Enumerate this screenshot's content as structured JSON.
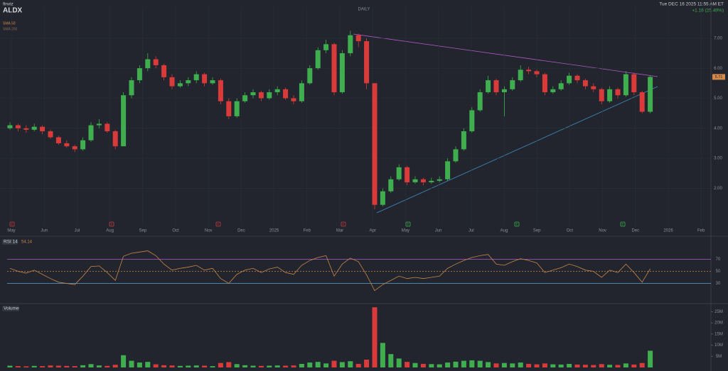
{
  "header": {
    "brand": "finviz",
    "ticker": "ALDX",
    "timeframe": "DAILY",
    "datetime": "Tue DEC 16 2025 11:55 AM ET",
    "change": "+1.16 (25.49%)",
    "sma50": "SMA 50",
    "sma200": "SMA 200"
  },
  "chart_data": {
    "type": "candlestick",
    "up_color": "#3fae4f",
    "down_color": "#d93b3b",
    "xaxis_labels": [
      "May",
      "Jun",
      "Jul",
      "Aug",
      "Sep",
      "Oct",
      "Nov",
      "Dec",
      "2025",
      "Feb",
      "Mar",
      "Apr",
      "May",
      "Jun",
      "Jul",
      "Aug",
      "Sep",
      "Oct",
      "Nov",
      "Dec",
      "2026",
      "Feb"
    ],
    "earnings": [
      "E",
      "E",
      "E",
      "E",
      "E",
      "E",
      "E"
    ],
    "ylim": [
      0.9,
      7.8
    ],
    "yticks": [
      {
        "value": 2,
        "label": "2.00"
      },
      {
        "value": 3,
        "label": "3.00"
      },
      {
        "value": 4,
        "label": "4.00"
      },
      {
        "value": 5,
        "label": "5.00"
      },
      {
        "value": 6,
        "label": "6.00"
      },
      {
        "value": 7,
        "label": "7.00"
      }
    ],
    "candles": [
      [
        4.0,
        4.2,
        3.95,
        4.1
      ],
      [
        4.1,
        4.15,
        3.9,
        4.0
      ],
      [
        4.0,
        4.1,
        3.85,
        3.95
      ],
      [
        3.95,
        4.15,
        3.9,
        4.05
      ],
      [
        4.05,
        4.1,
        3.8,
        3.9
      ],
      [
        3.9,
        3.95,
        3.65,
        3.7
      ],
      [
        3.7,
        3.75,
        3.45,
        3.5
      ],
      [
        3.5,
        3.6,
        3.35,
        3.4
      ],
      [
        3.4,
        3.45,
        3.2,
        3.3
      ],
      [
        3.3,
        3.7,
        3.25,
        3.6
      ],
      [
        3.6,
        4.2,
        3.55,
        4.1
      ],
      [
        4.1,
        4.3,
        4.0,
        4.15
      ],
      [
        4.15,
        4.2,
        3.85,
        3.9
      ],
      [
        3.9,
        3.95,
        3.3,
        3.4
      ],
      [
        3.4,
        5.2,
        3.4,
        5.1
      ],
      [
        5.1,
        5.7,
        5.0,
        5.6
      ],
      [
        5.6,
        6.1,
        5.5,
        6.0
      ],
      [
        6.0,
        6.5,
        5.9,
        6.3
      ],
      [
        6.3,
        6.4,
        6.0,
        6.1
      ],
      [
        6.1,
        6.15,
        5.6,
        5.7
      ],
      [
        5.7,
        5.8,
        5.3,
        5.4
      ],
      [
        5.4,
        5.6,
        5.35,
        5.5
      ],
      [
        5.5,
        5.7,
        5.4,
        5.6
      ],
      [
        5.6,
        5.9,
        5.5,
        5.8
      ],
      [
        5.8,
        5.85,
        5.4,
        5.5
      ],
      [
        5.5,
        5.7,
        5.45,
        5.6
      ],
      [
        5.6,
        5.65,
        4.8,
        4.9
      ],
      [
        4.9,
        5.0,
        4.3,
        4.4
      ],
      [
        4.4,
        5.0,
        4.35,
        4.9
      ],
      [
        4.9,
        5.2,
        4.85,
        5.1
      ],
      [
        5.1,
        5.3,
        5.0,
        5.2
      ],
      [
        5.2,
        5.25,
        4.9,
        5.0
      ],
      [
        5.0,
        5.3,
        4.95,
        5.2
      ],
      [
        5.2,
        5.4,
        5.1,
        5.3
      ],
      [
        5.3,
        5.35,
        4.95,
        5.0
      ],
      [
        5.0,
        5.1,
        4.8,
        4.9
      ],
      [
        4.9,
        5.6,
        4.85,
        5.5
      ],
      [
        5.5,
        6.1,
        5.45,
        6.0
      ],
      [
        6.0,
        6.7,
        5.95,
        6.6
      ],
      [
        6.6,
        6.95,
        6.5,
        6.8
      ],
      [
        6.8,
        6.85,
        5.1,
        5.2
      ],
      [
        5.2,
        6.6,
        5.15,
        6.5
      ],
      [
        6.5,
        7.25,
        6.4,
        7.1
      ],
      [
        7.1,
        7.15,
        6.7,
        6.9
      ],
      [
        6.9,
        7.0,
        5.3,
        5.5
      ],
      [
        5.5,
        5.5,
        1.3,
        1.45
      ],
      [
        1.45,
        2.0,
        1.4,
        1.9
      ],
      [
        1.9,
        2.4,
        1.85,
        2.3
      ],
      [
        2.3,
        2.8,
        2.25,
        2.7
      ],
      [
        2.7,
        2.75,
        2.1,
        2.2
      ],
      [
        2.2,
        2.4,
        2.15,
        2.3
      ],
      [
        2.3,
        2.35,
        2.1,
        2.2
      ],
      [
        2.2,
        2.35,
        2.15,
        2.25
      ],
      [
        2.25,
        2.4,
        2.2,
        2.3
      ],
      [
        2.3,
        3.0,
        2.25,
        2.9
      ],
      [
        2.9,
        3.4,
        2.85,
        3.3
      ],
      [
        3.3,
        4.0,
        3.25,
        3.9
      ],
      [
        3.9,
        4.7,
        3.85,
        4.6
      ],
      [
        4.6,
        5.3,
        4.55,
        5.2
      ],
      [
        5.2,
        5.75,
        5.15,
        5.6
      ],
      [
        5.6,
        5.65,
        5.1,
        5.2
      ],
      [
        5.2,
        5.4,
        4.4,
        5.3
      ],
      [
        5.3,
        5.7,
        5.25,
        5.6
      ],
      [
        5.6,
        6.1,
        5.55,
        5.95
      ],
      [
        5.95,
        6.05,
        5.8,
        5.9
      ],
      [
        5.9,
        5.95,
        5.7,
        5.8
      ],
      [
        5.8,
        5.85,
        5.1,
        5.2
      ],
      [
        5.2,
        5.4,
        5.15,
        5.3
      ],
      [
        5.3,
        5.6,
        5.25,
        5.5
      ],
      [
        5.5,
        5.85,
        5.45,
        5.75
      ],
      [
        5.75,
        5.8,
        5.5,
        5.6
      ],
      [
        5.6,
        5.65,
        5.3,
        5.4
      ],
      [
        5.4,
        5.5,
        5.2,
        5.3
      ],
      [
        5.3,
        5.35,
        4.8,
        4.9
      ],
      [
        4.9,
        5.4,
        4.85,
        5.3
      ],
      [
        5.3,
        5.35,
        5.0,
        5.1
      ],
      [
        5.1,
        5.9,
        5.05,
        5.8
      ],
      [
        5.8,
        5.85,
        5.1,
        5.2
      ],
      [
        5.2,
        5.25,
        4.5,
        4.55
      ],
      [
        4.55,
        5.75,
        4.5,
        5.71
      ]
    ],
    "rsi": {
      "name": "RSI 14",
      "last_label": "54.14",
      "color": "#c8874a",
      "ylim": [
        0,
        100
      ],
      "yticks": [
        30,
        50,
        70
      ],
      "values": [
        55,
        50,
        47,
        52,
        45,
        38,
        32,
        30,
        28,
        42,
        58,
        59,
        48,
        35,
        75,
        80,
        82,
        84,
        76,
        62,
        52,
        55,
        57,
        60,
        52,
        55,
        38,
        30,
        45,
        52,
        55,
        48,
        54,
        57,
        48,
        45,
        60,
        68,
        73,
        76,
        42,
        62,
        72,
        66,
        44,
        18,
        28,
        35,
        42,
        38,
        40,
        38,
        40,
        42,
        55,
        62,
        68,
        73,
        76,
        78,
        62,
        60,
        66,
        71,
        68,
        64,
        48,
        52,
        56,
        62,
        58,
        52,
        50,
        40,
        52,
        48,
        62,
        48,
        32,
        54.14
      ]
    },
    "volume": {
      "name": "Volume",
      "ylim": [
        0,
        28
      ],
      "yticks": [
        {
          "value": 5,
          "label": "5M"
        },
        {
          "value": 10,
          "label": "10M"
        },
        {
          "value": 15,
          "label": "15M"
        },
        {
          "value": 20,
          "label": "20M"
        },
        {
          "value": 25,
          "label": "25M"
        }
      ],
      "values": [
        0.8,
        0.6,
        0.5,
        0.7,
        0.6,
        0.9,
        0.8,
        0.7,
        0.6,
        1.0,
        1.5,
        0.9,
        0.7,
        1.2,
        5.5,
        3.0,
        2.2,
        2.5,
        1.4,
        1.0,
        0.9,
        0.7,
        0.8,
        0.9,
        0.8,
        0.6,
        2.0,
        2.4,
        1.5,
        1.0,
        0.8,
        0.7,
        0.8,
        0.9,
        0.8,
        0.9,
        1.6,
        2.2,
        2.5,
        1.8,
        3.0,
        2.4,
        2.8,
        1.6,
        3.5,
        27,
        11,
        6,
        4,
        2.5,
        2,
        1.6,
        1.5,
        1.4,
        2.2,
        2.6,
        3.0,
        3.2,
        3.0,
        2.4,
        1.8,
        2.0,
        1.8,
        2.2,
        1.6,
        1.4,
        1.8,
        1.4,
        1.3,
        1.6,
        1.3,
        1.2,
        1.1,
        1.5,
        1.2,
        1.1,
        1.8,
        1.3,
        2.0,
        7.5
      ]
    }
  }
}
